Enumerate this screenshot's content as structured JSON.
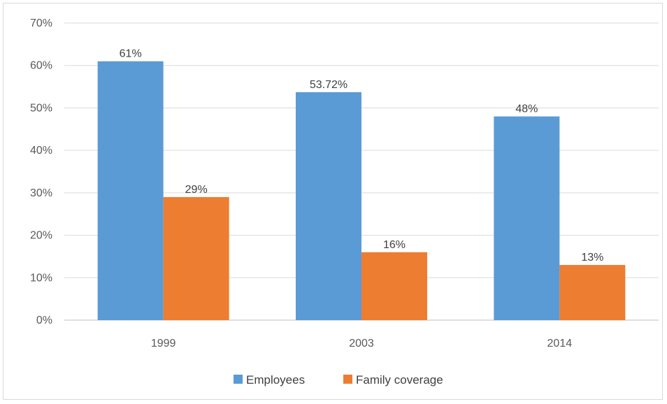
{
  "chart_data": {
    "type": "bar",
    "categories": [
      "1999",
      "2003",
      "2014"
    ],
    "series": [
      {
        "name": "Employees",
        "values": [
          61,
          53.72,
          48
        ],
        "labels": [
          "61%",
          "53.72%",
          "48%"
        ],
        "color": "#5b9bd5"
      },
      {
        "name": "Family coverage",
        "values": [
          29,
          16,
          13
        ],
        "labels": [
          "29%",
          "16%",
          "13%"
        ],
        "color": "#ed7d31"
      }
    ],
    "title": "",
    "xlabel": "",
    "ylabel": "",
    "ylim": [
      0,
      70
    ],
    "yticks": [
      0,
      10,
      20,
      30,
      40,
      50,
      60,
      70
    ],
    "ytick_labels": [
      "0%",
      "10%",
      "20%",
      "30%",
      "40%",
      "50%",
      "60%",
      "70%"
    ],
    "grid": true,
    "legend_position": "bottom"
  }
}
